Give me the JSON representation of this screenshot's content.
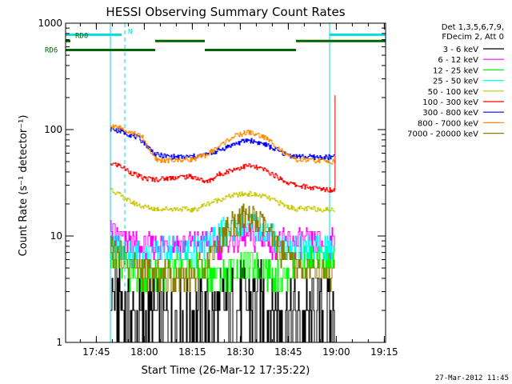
{
  "chart_data": {
    "type": "line",
    "title": "HESSI Observing Summary Count Rates",
    "xlabel": "Start Time (26-Mar-12 17:35:22)",
    "ylabel": "Count Rate (s⁻¹ detector⁻¹)",
    "x_unit": "minutes since 17:35:22",
    "xlim": [
      0,
      100
    ],
    "ylim": [
      1,
      1000
    ],
    "yscale": "log",
    "x_ticks": [
      {
        "label": "17:45",
        "value": 9.6
      },
      {
        "label": "18:00",
        "value": 24.6
      },
      {
        "label": "18:15",
        "value": 39.6
      },
      {
        "label": "18:30",
        "value": 54.6
      },
      {
        "label": "18:45",
        "value": 69.6
      },
      {
        "label": "19:00",
        "value": 84.6
      },
      {
        "label": "19:15",
        "value": 99.6
      }
    ],
    "y_ticks": [
      {
        "label": "1",
        "value": 1
      },
      {
        "label": "10",
        "value": 10
      },
      {
        "label": "100",
        "value": 100
      },
      {
        "label": "1000",
        "value": 1000
      }
    ],
    "legend": {
      "position": "top-right",
      "header": [
        "Det 1,3,5,6,7,9,",
        "FDecim 2, Att 0"
      ]
    },
    "series": [
      {
        "name": "3 - 6 keV",
        "color": "#000000",
        "x": [
          14,
          18,
          18.5,
          28,
          40,
          47,
          52,
          57,
          62,
          67,
          72,
          78,
          84
        ],
        "y": [
          2.8,
          2.5,
          1.6,
          1.5,
          1.5,
          1.8,
          2.2,
          2.4,
          2.2,
          1.8,
          1.5,
          1.5,
          1.5
        ]
      },
      {
        "name": "6 - 12 keV",
        "color": "#ff00ff",
        "x": [
          14,
          16,
          20,
          24,
          28,
          32,
          40,
          44,
          48,
          52,
          57,
          62,
          66,
          72,
          78,
          84
        ],
        "y": [
          10.5,
          9.5,
          8.2,
          7.5,
          8,
          8.5,
          8.5,
          8.5,
          8.5,
          9.5,
          10,
          9.5,
          8.5,
          8.5,
          8.5,
          8.5
        ]
      },
      {
        "name": "12 - 25 keV",
        "color": "#00ff00",
        "x": [
          14,
          17,
          20,
          24,
          28,
          32,
          36,
          40,
          44,
          48,
          52,
          57,
          62,
          66,
          69,
          72,
          78,
          84
        ],
        "y": [
          6.5,
          5.5,
          4.5,
          4,
          4.2,
          4.8,
          5,
          5,
          4.5,
          4.2,
          4.8,
          5.5,
          4.8,
          4.2,
          4,
          5.5,
          6,
          6
        ]
      },
      {
        "name": "25 - 50 keV",
        "color": "#00ffff",
        "x": [
          14,
          17,
          20,
          24,
          28,
          32,
          36,
          40,
          44,
          48,
          52,
          57,
          62,
          66,
          69,
          72,
          78,
          84
        ],
        "y": [
          8,
          7.5,
          7,
          6.5,
          7,
          7.5,
          7.5,
          7,
          8,
          10,
          12.5,
          13,
          11.5,
          9,
          7.8,
          7.5,
          7.5,
          7.5
        ]
      },
      {
        "name": "50 - 100 keV",
        "color": "#c8c800",
        "x": [
          14,
          17,
          20,
          24,
          28,
          32,
          36,
          40,
          44,
          48,
          52,
          57,
          62,
          66,
          69,
          72,
          78,
          84
        ],
        "y": [
          28,
          24,
          21,
          19,
          18,
          18,
          18,
          17.5,
          20,
          22,
          24,
          25,
          23.5,
          21,
          19,
          18,
          18,
          17.5
        ]
      },
      {
        "name": "100 - 300 keV",
        "color": "#ff0000",
        "x": [
          14,
          17,
          20,
          24,
          28,
          32,
          36,
          40,
          44,
          48,
          52,
          57,
          62,
          66,
          69,
          72,
          78,
          84
        ],
        "y": [
          48,
          46,
          40,
          35,
          34,
          35,
          36,
          36,
          32,
          38,
          42,
          46,
          42,
          36,
          32,
          30,
          28,
          27
        ]
      },
      {
        "name": "300 - 800 keV",
        "color": "#0000ff",
        "x": [
          14,
          18,
          22,
          24,
          28,
          32,
          36,
          40,
          44,
          48,
          52,
          57,
          62,
          66,
          69,
          72,
          78,
          84
        ],
        "y": [
          102,
          95,
          85,
          78,
          58,
          56,
          55,
          56,
          58,
          64,
          72,
          80,
          73,
          64,
          58,
          56,
          55,
          55
        ]
      },
      {
        "name": "800 - 7000 keV",
        "color": "#ff8c00",
        "x": [
          14,
          18,
          22,
          24,
          28,
          32,
          36,
          40,
          44,
          48,
          52,
          57,
          62,
          66,
          69,
          72,
          78,
          84
        ],
        "y": [
          108,
          102,
          90,
          84,
          52,
          51,
          52,
          53,
          58,
          70,
          85,
          95,
          85,
          70,
          57,
          52,
          51,
          50
        ]
      },
      {
        "name": "7000 - 20000 keV",
        "color": "#8b7d00",
        "x": [
          14,
          17,
          20,
          24,
          28,
          32,
          36,
          40,
          44,
          48,
          52,
          57,
          62,
          66,
          69,
          72,
          78,
          84
        ],
        "y": [
          7.5,
          6.5,
          5.5,
          4.8,
          4.2,
          4.2,
          4.2,
          4.2,
          6,
          9,
          13,
          15,
          12,
          8,
          6,
          5,
          4.5,
          4.2
        ]
      }
    ],
    "upper_lines": [
      {
        "name": "RD0",
        "color": "#00dddd",
        "y": 780,
        "segments": [
          [
            0,
            17.5
          ],
          [
            82.5,
            100
          ]
        ]
      },
      {
        "name": "N",
        "color": "#00dddd",
        "y": 780,
        "segments": []
      },
      {
        "name": "RD6",
        "color": "#006400",
        "y": 680,
        "segments": [
          [
            0,
            1.5
          ]
        ]
      },
      {
        "name": "",
        "color": "#006400",
        "y": 560,
        "segments": [
          [
            0,
            28
          ]
        ]
      },
      {
        "name": "",
        "color": "#006400",
        "y": 680,
        "segments": [
          [
            28,
            43.5
          ]
        ]
      },
      {
        "name": "",
        "color": "#006400",
        "y": 560,
        "segments": [
          [
            43.5,
            72
          ]
        ]
      },
      {
        "name": "",
        "color": "#006400",
        "y": 680,
        "segments": [
          [
            72,
            100
          ]
        ]
      }
    ],
    "vlines": [
      {
        "x": 14,
        "style": "solid"
      },
      {
        "x": 18.5,
        "style": "dashed"
      },
      {
        "x": 82.5,
        "style": "solid"
      },
      {
        "x": 100,
        "style": "dashed"
      }
    ]
  },
  "footer_timestamp": "27-Mar-2012 11:45"
}
